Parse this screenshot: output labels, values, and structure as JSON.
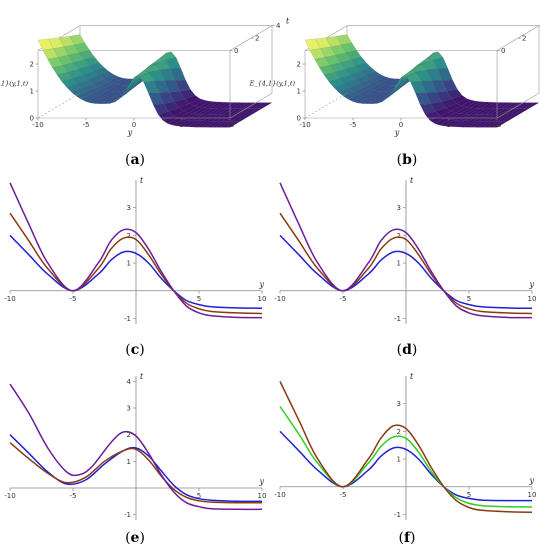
{
  "figure": {
    "captions": [
      "a",
      "b",
      "c",
      "d",
      "e",
      "f"
    ]
  },
  "chart_data": [
    {
      "panel": "a",
      "type": "surface3d",
      "zlabel": "R_{4,1}(y,1,t)",
      "xlabel": "y",
      "tlabel": "t",
      "x_ticks": [
        "-10",
        "-5",
        "0",
        "5",
        "10"
      ],
      "z_ticks": [
        "0",
        "1",
        "2"
      ],
      "t_ticks": [
        "0",
        "2",
        "4"
      ],
      "colors": [
        "#e8f066",
        "#6cc56a",
        "#2a8f8a",
        "#36538c",
        "#40146e"
      ]
    },
    {
      "panel": "b",
      "type": "surface3d",
      "zlabel": "E_{4,1}(y,1,t)",
      "xlabel": "y",
      "tlabel": "t",
      "x_ticks": [
        "-10",
        "-5",
        "0",
        "5",
        "10"
      ],
      "z_ticks": [
        "0",
        "1",
        "2"
      ],
      "t_ticks": [
        "0",
        "2",
        "4"
      ],
      "colors": [
        "#e8f066",
        "#6cc56a",
        "#2a8f8a",
        "#36538c",
        "#40146e"
      ]
    },
    {
      "panel": "c",
      "type": "line",
      "xlabel": "y",
      "ylabel": "t",
      "xlim": [
        -10,
        10
      ],
      "ylim": [
        -1.2,
        4
      ],
      "x_ticks": [
        "-10",
        "-5",
        "5",
        "10"
      ],
      "y_ticks": [
        "-1",
        "1",
        "2",
        "3"
      ],
      "series": [
        {
          "color": "#1e22d0",
          "x": [
            -10,
            -8.5,
            -7,
            -5,
            -3,
            -2,
            -1,
            0,
            1,
            2,
            3,
            4,
            5,
            6,
            8,
            10
          ],
          "y": [
            2.0,
            1.3,
            0.6,
            0.0,
            0.6,
            1.1,
            1.4,
            1.35,
            1.0,
            0.45,
            0.0,
            -0.35,
            -0.5,
            -0.58,
            -0.62,
            -0.63
          ]
        },
        {
          "color": "#8b3a10",
          "x": [
            -10,
            -8.5,
            -7,
            -5,
            -3,
            -2,
            -1,
            0,
            1,
            2,
            3,
            4,
            5,
            6,
            8,
            10
          ],
          "y": [
            2.8,
            1.8,
            0.8,
            0.0,
            0.8,
            1.5,
            1.9,
            1.85,
            1.3,
            0.6,
            0.0,
            -0.45,
            -0.65,
            -0.75,
            -0.8,
            -0.82
          ]
        },
        {
          "color": "#6a1e9a",
          "x": [
            -10,
            -8.5,
            -7,
            -5,
            -3,
            -2,
            -1,
            0,
            1,
            2,
            3,
            4,
            5,
            6,
            8,
            10
          ],
          "y": [
            3.9,
            2.4,
            1.0,
            0.0,
            1.0,
            1.8,
            2.2,
            2.1,
            1.5,
            0.7,
            0.0,
            -0.55,
            -0.8,
            -0.9,
            -0.96,
            -0.97
          ]
        }
      ]
    },
    {
      "panel": "d",
      "type": "line",
      "xlabel": "y",
      "ylabel": "t",
      "xlim": [
        -10,
        10
      ],
      "ylim": [
        -1.2,
        4
      ],
      "x_ticks": [
        "-10",
        "-5",
        "5",
        "10"
      ],
      "y_ticks": [
        "-1",
        "1",
        "2",
        "3"
      ],
      "series": [
        {
          "color": "#1e22d0",
          "x": [
            -10,
            -8.5,
            -7,
            -5,
            -3,
            -2,
            -1,
            0,
            1,
            2,
            3,
            4,
            5,
            6,
            8,
            10
          ],
          "y": [
            2.0,
            1.3,
            0.6,
            0.0,
            0.6,
            1.1,
            1.4,
            1.35,
            1.0,
            0.45,
            0.0,
            -0.35,
            -0.5,
            -0.58,
            -0.62,
            -0.63
          ]
        },
        {
          "color": "#8b3a10",
          "x": [
            -10,
            -8.5,
            -7,
            -5,
            -3,
            -2,
            -1,
            0,
            1,
            2,
            3,
            4,
            5,
            6,
            8,
            10
          ],
          "y": [
            2.8,
            1.8,
            0.8,
            0.0,
            0.8,
            1.5,
            1.9,
            1.85,
            1.3,
            0.6,
            0.0,
            -0.45,
            -0.65,
            -0.75,
            -0.8,
            -0.82
          ]
        },
        {
          "color": "#6a1e9a",
          "x": [
            -10,
            -8.5,
            -7,
            -5,
            -3,
            -2,
            -1,
            0,
            1,
            2,
            3,
            4,
            5,
            6,
            8,
            10
          ],
          "y": [
            3.9,
            2.4,
            1.0,
            0.0,
            1.0,
            1.8,
            2.2,
            2.1,
            1.5,
            0.7,
            0.0,
            -0.55,
            -0.8,
            -0.9,
            -0.96,
            -0.97
          ]
        }
      ]
    },
    {
      "panel": "e",
      "type": "line",
      "xlabel": "y",
      "ylabel": "t",
      "xlim": [
        -10,
        10
      ],
      "ylim": [
        -1.2,
        4.2
      ],
      "x_ticks": [
        "-10",
        "-5",
        "5",
        "10"
      ],
      "y_ticks": [
        "-1",
        "1",
        "2",
        "3",
        "4"
      ],
      "series": [
        {
          "color": "#1e22d0",
          "x": [
            -10,
            -8.5,
            -7,
            -5.5,
            -4,
            -2.5,
            -1,
            0,
            1,
            2,
            3,
            4,
            5,
            6,
            8,
            10
          ],
          "y": [
            2.0,
            1.3,
            0.6,
            0.15,
            0.3,
            0.9,
            1.4,
            1.5,
            1.2,
            0.65,
            0.1,
            -0.25,
            -0.4,
            -0.46,
            -0.5,
            -0.5
          ]
        },
        {
          "color": "#8b3a10",
          "x": [
            -10,
            -8.5,
            -7,
            -5.5,
            -4,
            -2.5,
            -1,
            0,
            1,
            2,
            3,
            4,
            5,
            6,
            8,
            10
          ],
          "y": [
            1.7,
            1.1,
            0.55,
            0.2,
            0.4,
            1.0,
            1.4,
            1.45,
            1.05,
            0.45,
            -0.05,
            -0.35,
            -0.48,
            -0.53,
            -0.55,
            -0.55
          ]
        },
        {
          "color": "#6a1e9a",
          "x": [
            -10,
            -8.5,
            -7,
            -5.5,
            -4.5,
            -3.5,
            -2,
            -1,
            0,
            1,
            2,
            3,
            4,
            5,
            6,
            8,
            10
          ],
          "y": [
            3.9,
            2.8,
            1.5,
            0.6,
            0.5,
            0.8,
            1.7,
            2.1,
            1.95,
            1.3,
            0.5,
            -0.15,
            -0.55,
            -0.7,
            -0.78,
            -0.8,
            -0.8
          ]
        }
      ]
    },
    {
      "panel": "f",
      "type": "line",
      "xlabel": "y",
      "ylabel": "t",
      "xlim": [
        -10,
        10
      ],
      "ylim": [
        -1.2,
        4
      ],
      "x_ticks": [
        "-10",
        "-5",
        "5",
        "10"
      ],
      "y_ticks": [
        "-1",
        "1",
        "2",
        "3"
      ],
      "series": [
        {
          "color": "#1e22d0",
          "x": [
            -10,
            -8.5,
            -7,
            -5,
            -3,
            -2,
            -1,
            0,
            1,
            2,
            3,
            4,
            5,
            6,
            8,
            10
          ],
          "y": [
            2.0,
            1.3,
            0.6,
            0.0,
            0.6,
            1.1,
            1.4,
            1.35,
            1.0,
            0.45,
            0.0,
            -0.3,
            -0.42,
            -0.48,
            -0.5,
            -0.5
          ]
        },
        {
          "color": "#33cc22",
          "x": [
            -10,
            -8.5,
            -7,
            -5,
            -3,
            -2,
            -1,
            0,
            1,
            2,
            3,
            4,
            5,
            6,
            8,
            10
          ],
          "y": [
            2.9,
            1.9,
            0.85,
            0.0,
            0.85,
            1.45,
            1.8,
            1.75,
            1.25,
            0.55,
            0.0,
            -0.4,
            -0.6,
            -0.68,
            -0.72,
            -0.73
          ]
        },
        {
          "color": "#8b3a10",
          "x": [
            -10,
            -8.5,
            -7,
            -5,
            -3,
            -2,
            -1,
            0,
            1,
            2,
            3,
            4,
            5,
            6,
            8,
            10
          ],
          "y": [
            3.8,
            2.4,
            1.0,
            0.0,
            1.0,
            1.75,
            2.2,
            2.1,
            1.5,
            0.7,
            0.0,
            -0.5,
            -0.75,
            -0.85,
            -0.9,
            -0.92
          ]
        }
      ]
    }
  ]
}
